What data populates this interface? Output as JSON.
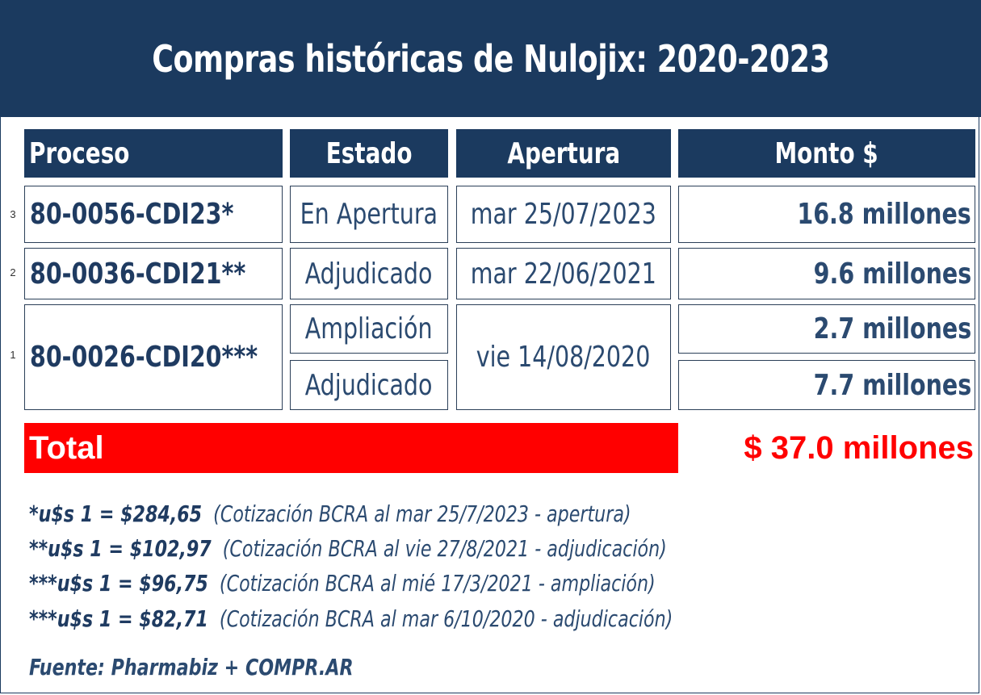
{
  "title": "Compras históricas de Nulojix: 2020-2023",
  "headers": {
    "proceso": "Proceso",
    "estado": "Estado",
    "apertura": "Apertura",
    "monto": "Monto $"
  },
  "rows": [
    {
      "num": "3",
      "proceso": "80-0056-CDI23*",
      "estado": "En Apertura",
      "apertura": "mar 25/07/2023",
      "monto": "16.8 millones"
    },
    {
      "num": "2",
      "proceso": "80-0036-CDI21**",
      "estado": "Adjudicado",
      "apertura": "mar 22/06/2021",
      "monto": "9.6 millones"
    },
    {
      "num": "1",
      "proceso": "80-0026-CDI20***",
      "estado_a": "Ampliación",
      "estado_b": "Adjudicado",
      "apertura": "vie 14/08/2020",
      "monto_a": "2.7 millones",
      "monto_b": "7.7 millones"
    }
  ],
  "total": {
    "label": "Total",
    "amount": "$ 37.0 millones"
  },
  "notes": [
    {
      "rate": "*u$s 1 = $284,65",
      "detail": "(Cotización BCRA al mar 25/7/2023 - apertura)"
    },
    {
      "rate": "**u$s 1 = $102,97",
      "detail": "(Cotización BCRA al vie 27/8/2021 - adjudicación)"
    },
    {
      "rate": "***u$s 1 = $96,75",
      "detail": "(Cotización BCRA al mié 17/3/2021 - ampliación)"
    },
    {
      "rate": "***u$s 1 = $82,71",
      "detail": "(Cotización BCRA al mar 6/10/2020 - adjudicación)"
    }
  ],
  "source": "Fuente: Pharmabiz + COMPR.AR"
}
